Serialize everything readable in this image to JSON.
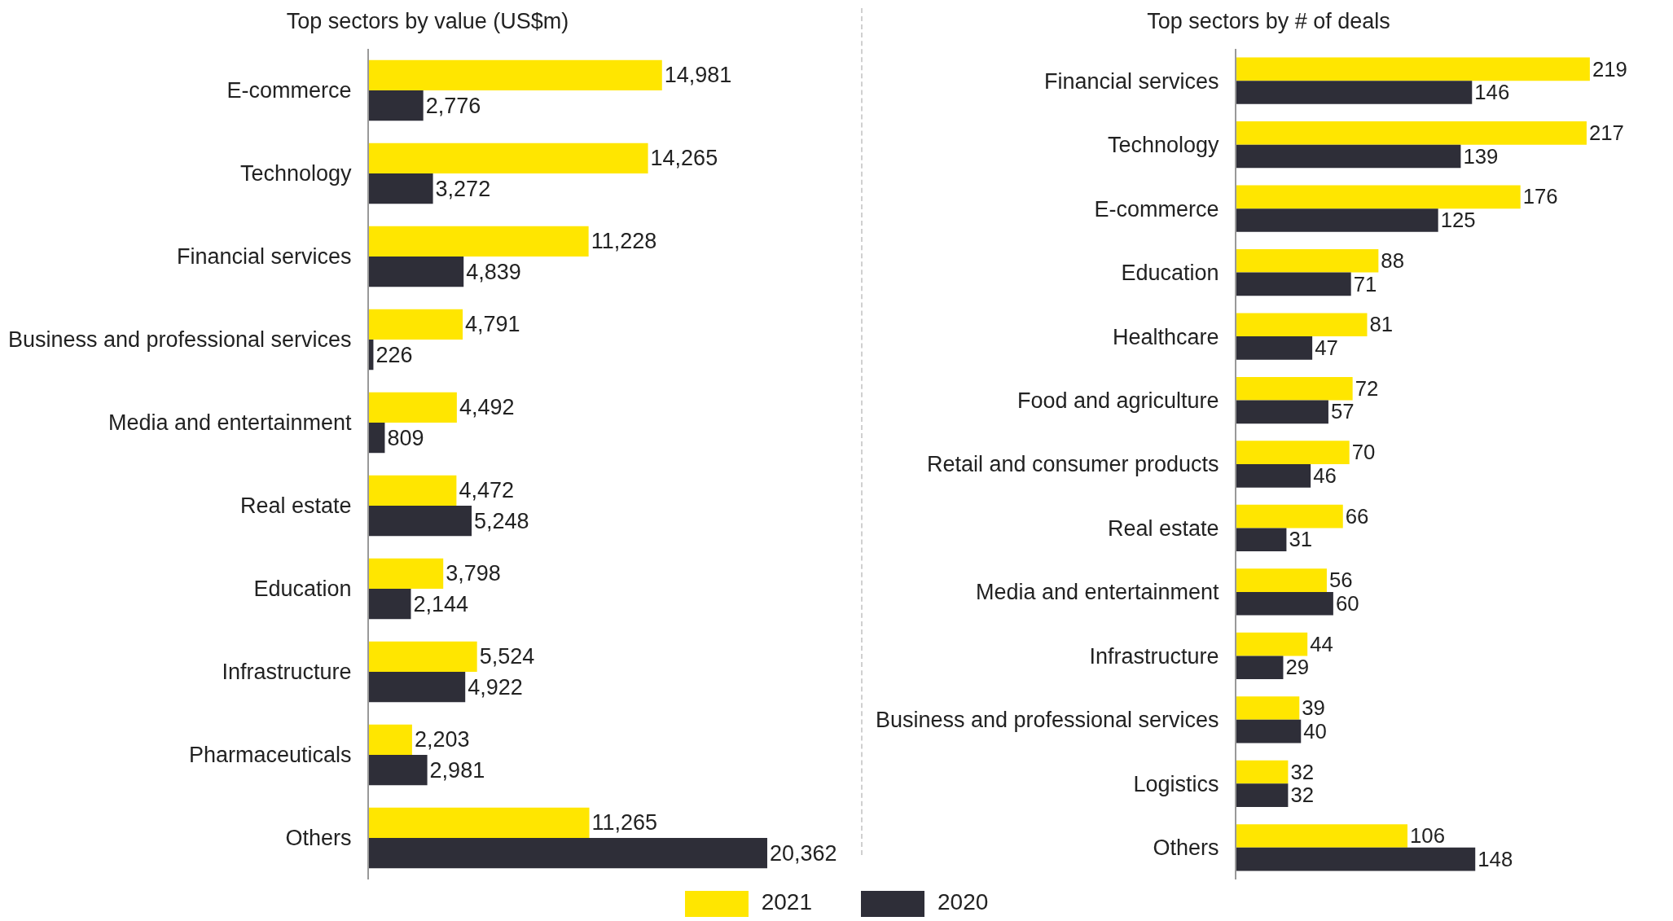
{
  "chart_data": [
    {
      "type": "bar",
      "orientation": "horizontal",
      "title": "Top sectors by value (US$m)",
      "categories": [
        "E-commerce",
        "Technology",
        "Financial services",
        "Business and professional services",
        "Media and entertainment",
        "Real estate",
        "Education",
        "Infrastructure",
        "Pharmaceuticals",
        "Others"
      ],
      "series": [
        {
          "name": "2021",
          "color": "#ffe600",
          "values": [
            14981,
            14265,
            11228,
            4791,
            4492,
            4472,
            3798,
            5524,
            2203,
            11265
          ],
          "value_labels": [
            "14,981",
            "14,265",
            "11,228",
            "4,791",
            "4,492",
            "4,472",
            "3,798",
            "5,524",
            "2,203",
            "11,265"
          ]
        },
        {
          "name": "2020",
          "color": "#2e2e38",
          "values": [
            2776,
            3272,
            4839,
            226,
            809,
            5248,
            2144,
            4922,
            2981,
            20362
          ],
          "value_labels": [
            "2,776",
            "3,272",
            "4,839",
            "226",
            "809",
            "5,248",
            "2,144",
            "4,922",
            "2,981",
            "20,362"
          ]
        }
      ],
      "tick_labels": "y",
      "grid": false,
      "legend": "bottom"
    },
    {
      "type": "bar",
      "orientation": "horizontal",
      "title": "Top sectors by # of deals",
      "categories": [
        "Financial services",
        "Technology",
        "E-commerce",
        "Education",
        "Healthcare",
        "Food and agriculture",
        "Retail and consumer products",
        "Real estate",
        "Media and entertainment",
        "Infrastructure",
        "Business and professional services",
        "Logistics",
        "Others"
      ],
      "series": [
        {
          "name": "2021",
          "color": "#ffe600",
          "values": [
            219,
            217,
            176,
            88,
            81,
            72,
            70,
            66,
            56,
            44,
            39,
            32,
            106
          ]
        },
        {
          "name": "2020",
          "color": "#2e2e38",
          "values": [
            146,
            139,
            125,
            71,
            47,
            57,
            46,
            31,
            60,
            29,
            40,
            32,
            148
          ]
        }
      ],
      "data_labels": true,
      "tick_labels": "y",
      "grid": false,
      "legend": "bottom"
    }
  ]
}
